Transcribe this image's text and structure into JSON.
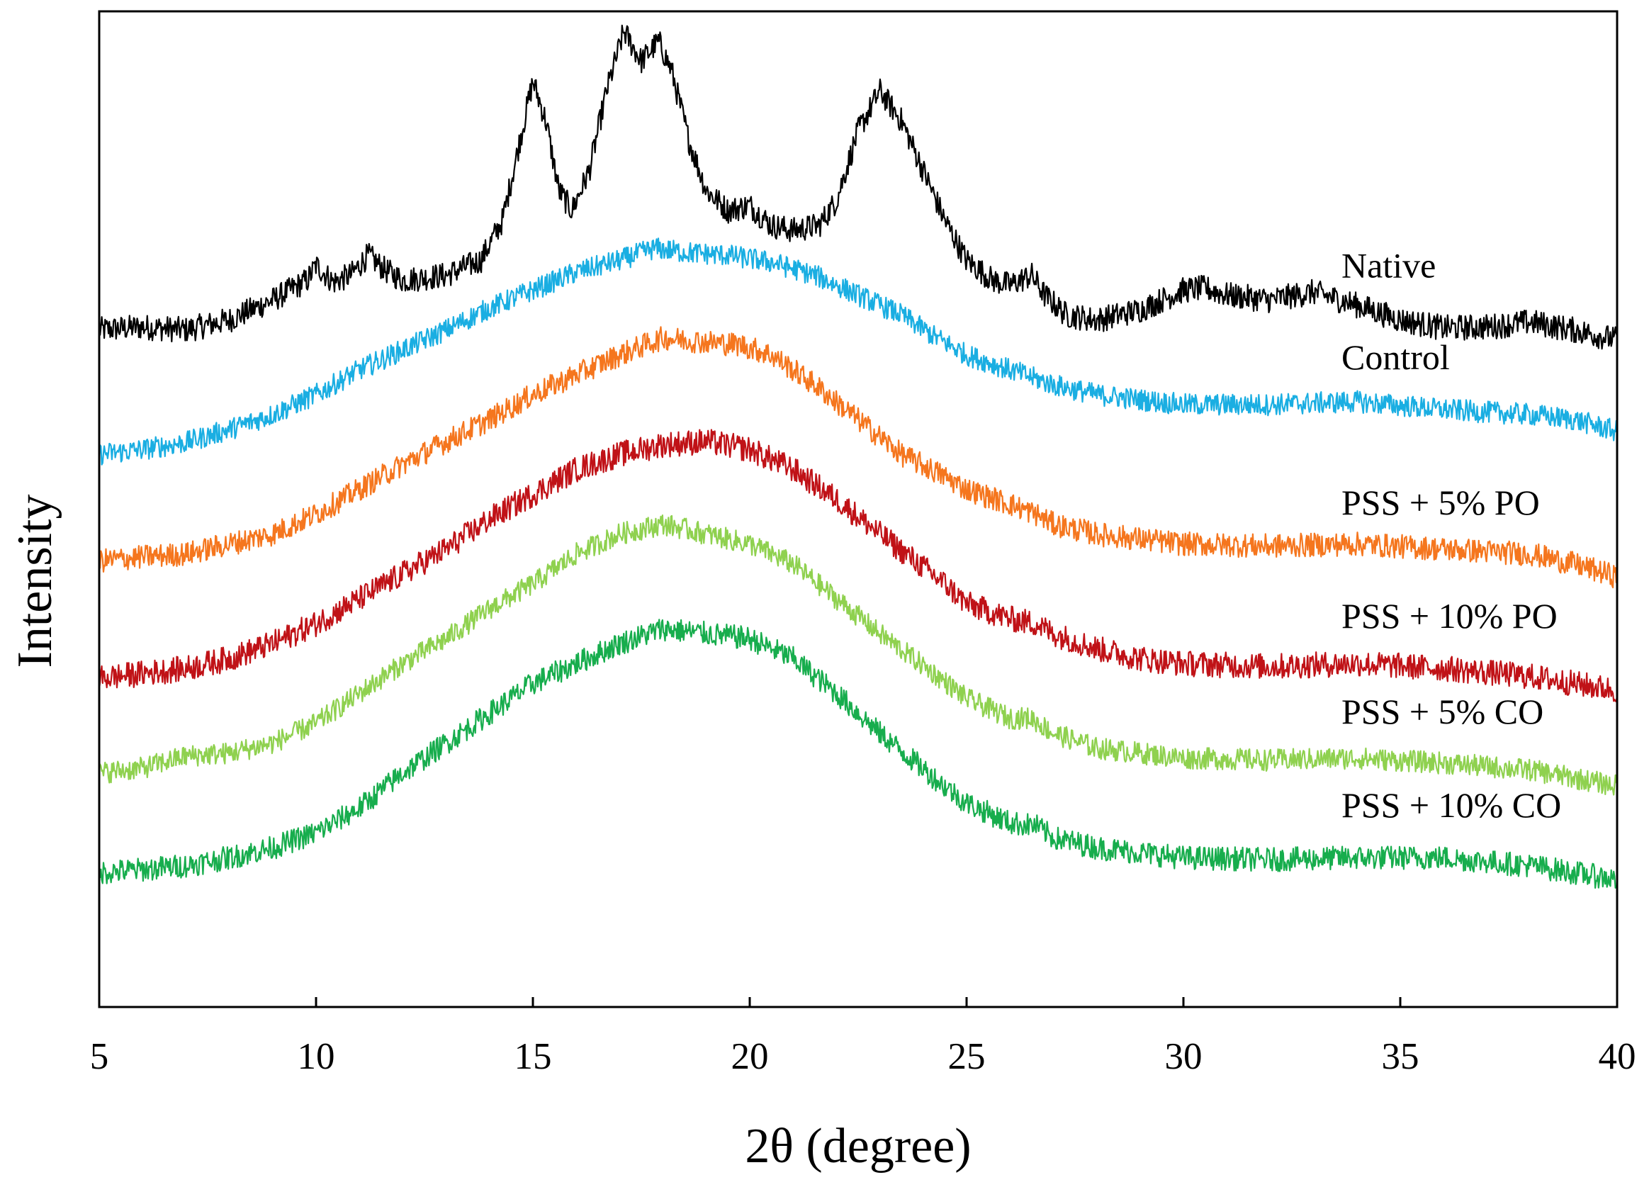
{
  "chart_data": {
    "type": "line",
    "title": "",
    "xlabel": "2θ (degree)",
    "ylabel": "Intensity",
    "xlim": [
      5,
      40
    ],
    "ylim": [
      0,
      100
    ],
    "xticks": [
      5,
      10,
      15,
      20,
      25,
      30,
      35,
      40
    ],
    "yticks_shown": false,
    "grid": false,
    "legend": "inline labels at right end of each curve",
    "series": [
      {
        "name": "Native",
        "color": "#000000",
        "noise": 1.3,
        "points": [
          [
            5,
            68
          ],
          [
            6,
            68.3
          ],
          [
            7,
            68
          ],
          [
            8,
            69
          ],
          [
            9,
            71
          ],
          [
            9.8,
            73
          ],
          [
            10,
            74.5
          ],
          [
            10.4,
            72.8
          ],
          [
            10.8,
            73.5
          ],
          [
            11.2,
            75.5
          ],
          [
            11.6,
            74
          ],
          [
            12,
            73
          ],
          [
            13,
            73.5
          ],
          [
            13.8,
            75
          ],
          [
            14.3,
            79
          ],
          [
            14.7,
            87
          ],
          [
            15,
            93
          ],
          [
            15.3,
            89
          ],
          [
            15.6,
            82
          ],
          [
            15.9,
            80
          ],
          [
            16.3,
            84
          ],
          [
            16.7,
            92
          ],
          [
            17.1,
            98
          ],
          [
            17.5,
            95
          ],
          [
            17.9,
            97
          ],
          [
            18.2,
            94
          ],
          [
            18.6,
            87
          ],
          [
            19,
            82
          ],
          [
            19.5,
            80
          ],
          [
            20,
            80.5
          ],
          [
            20.5,
            78.5
          ],
          [
            21,
            78
          ],
          [
            21.6,
            78.5
          ],
          [
            22,
            81
          ],
          [
            22.5,
            88
          ],
          [
            23,
            92
          ],
          [
            23.5,
            89
          ],
          [
            24,
            84
          ],
          [
            24.5,
            79
          ],
          [
            25,
            75
          ],
          [
            25.6,
            73
          ],
          [
            26,
            72.5
          ],
          [
            26.5,
            73.5
          ],
          [
            26.8,
            71.5
          ],
          [
            27.3,
            69.5
          ],
          [
            28,
            69
          ],
          [
            29,
            70
          ],
          [
            30,
            72
          ],
          [
            30.5,
            72.2
          ],
          [
            31,
            71.5
          ],
          [
            32,
            71
          ],
          [
            33,
            71.8
          ],
          [
            34,
            70.5
          ],
          [
            35,
            69
          ],
          [
            36,
            68.2
          ],
          [
            37,
            68.3
          ],
          [
            38,
            68.8
          ],
          [
            39,
            68
          ],
          [
            40,
            67
          ]
        ]
      },
      {
        "name": "Control",
        "color": "#1aaee2",
        "noise": 1.1,
        "points": [
          [
            5,
            55.5
          ],
          [
            6,
            56
          ],
          [
            7,
            56.7
          ],
          [
            8,
            58
          ],
          [
            9,
            59.5
          ],
          [
            10,
            61.5
          ],
          [
            11,
            64
          ],
          [
            12,
            66
          ],
          [
            13,
            68
          ],
          [
            14,
            70.2
          ],
          [
            15,
            72
          ],
          [
            16,
            73.8
          ],
          [
            17,
            75
          ],
          [
            17.8,
            76.2
          ],
          [
            18.5,
            75.8
          ],
          [
            19.5,
            75.5
          ],
          [
            20.5,
            74.8
          ],
          [
            21.5,
            73.5
          ],
          [
            22.5,
            71.5
          ],
          [
            23.5,
            69.5
          ],
          [
            24.2,
            67.5
          ],
          [
            25,
            65.5
          ],
          [
            26,
            64
          ],
          [
            27,
            62.5
          ],
          [
            28,
            61.5
          ],
          [
            30,
            60.5
          ],
          [
            32,
            60.5
          ],
          [
            34,
            60.8
          ],
          [
            36,
            60
          ],
          [
            38,
            59.5
          ],
          [
            39,
            59
          ],
          [
            40,
            57.8
          ]
        ]
      },
      {
        "name": "PSS + 5% PO",
        "color": "#f5761e",
        "noise": 1.2,
        "points": [
          [
            5,
            44.8
          ],
          [
            6,
            45.2
          ],
          [
            7,
            45.5
          ],
          [
            8,
            46.5
          ],
          [
            9,
            47.5
          ],
          [
            10,
            49.5
          ],
          [
            11,
            52
          ],
          [
            12,
            54.5
          ],
          [
            13,
            56.8
          ],
          [
            14,
            59
          ],
          [
            15,
            61.5
          ],
          [
            16,
            63.5
          ],
          [
            17,
            65.5
          ],
          [
            18,
            67.2
          ],
          [
            19,
            66.8
          ],
          [
            19.8,
            66.5
          ],
          [
            20.5,
            65.5
          ],
          [
            21.5,
            62.5
          ],
          [
            22.5,
            59
          ],
          [
            23.5,
            55.5
          ],
          [
            24.4,
            53.5
          ],
          [
            25,
            52
          ],
          [
            26,
            50.5
          ],
          [
            26.6,
            49.5
          ],
          [
            27,
            48.5
          ],
          [
            28,
            47.5
          ],
          [
            29,
            47
          ],
          [
            30,
            46.5
          ],
          [
            32,
            46.3
          ],
          [
            34,
            46.5
          ],
          [
            36,
            46
          ],
          [
            38,
            45.5
          ],
          [
            39,
            44.5
          ],
          [
            40,
            43.2
          ]
        ]
      },
      {
        "name": "PSS + 10% PO",
        "color": "#c01217",
        "noise": 1.3,
        "points": [
          [
            5,
            33
          ],
          [
            6,
            33.5
          ],
          [
            7,
            34
          ],
          [
            8,
            35
          ],
          [
            9,
            36.5
          ],
          [
            10,
            38.5
          ],
          [
            11,
            41
          ],
          [
            12,
            43.5
          ],
          [
            13,
            46
          ],
          [
            14,
            49
          ],
          [
            15,
            51.5
          ],
          [
            16,
            54
          ],
          [
            17,
            55.5
          ],
          [
            18,
            56.5
          ],
          [
            19,
            56.8
          ],
          [
            20,
            56
          ],
          [
            21,
            54
          ],
          [
            22,
            51
          ],
          [
            23,
            47.5
          ],
          [
            24.5,
            42.5
          ],
          [
            25,
            40.5
          ],
          [
            26,
            39
          ],
          [
            26.6,
            38.5
          ],
          [
            27,
            37.5
          ],
          [
            28,
            36
          ],
          [
            29,
            35
          ],
          [
            30,
            34.5
          ],
          [
            32,
            34.2
          ],
          [
            34,
            34.5
          ],
          [
            36,
            34
          ],
          [
            38,
            33.2
          ],
          [
            40,
            31.8
          ]
        ]
      },
      {
        "name": "PSS + 5% CO",
        "color": "#8fd14f",
        "noise": 1.1,
        "points": [
          [
            5,
            23.5
          ],
          [
            6,
            24
          ],
          [
            7,
            25.2
          ],
          [
            8,
            25.5
          ],
          [
            9,
            26.5
          ],
          [
            10,
            28.5
          ],
          [
            11,
            31.5
          ],
          [
            12,
            34.5
          ],
          [
            13,
            37
          ],
          [
            14,
            40
          ],
          [
            15,
            42.5
          ],
          [
            16,
            45.5
          ],
          [
            17,
            47.5
          ],
          [
            18,
            48.5
          ],
          [
            19,
            47.5
          ],
          [
            20,
            46.5
          ],
          [
            21,
            44.5
          ],
          [
            22,
            41
          ],
          [
            23,
            37.5
          ],
          [
            24.4,
            33
          ],
          [
            25,
            31
          ],
          [
            26,
            29
          ],
          [
            26.5,
            29
          ],
          [
            27,
            27.5
          ],
          [
            28,
            26
          ],
          [
            29,
            25.5
          ],
          [
            30,
            25
          ],
          [
            32,
            24.8
          ],
          [
            34,
            25
          ],
          [
            36,
            24.5
          ],
          [
            38,
            23.8
          ],
          [
            40,
            22.2
          ]
        ]
      },
      {
        "name": "PSS + 10% CO",
        "color": "#17ad4d",
        "noise": 1.2,
        "points": [
          [
            5,
            13.5
          ],
          [
            6,
            13.8
          ],
          [
            7,
            14.2
          ],
          [
            8,
            15
          ],
          [
            9,
            16
          ],
          [
            10,
            17.5
          ],
          [
            11,
            20
          ],
          [
            12,
            23.5
          ],
          [
            13,
            26.5
          ],
          [
            14,
            29.5
          ],
          [
            15,
            32.5
          ],
          [
            16,
            34.5
          ],
          [
            17,
            36.5
          ],
          [
            18,
            38
          ],
          [
            19,
            37.5
          ],
          [
            20,
            37
          ],
          [
            21,
            35
          ],
          [
            22,
            31.5
          ],
          [
            23,
            27.5
          ],
          [
            24.4,
            22.5
          ],
          [
            25,
            20.5
          ],
          [
            26,
            18.5
          ],
          [
            26.6,
            18.2
          ],
          [
            27,
            17
          ],
          [
            28,
            16
          ],
          [
            29,
            15.5
          ],
          [
            30,
            15
          ],
          [
            32,
            14.8
          ],
          [
            34,
            15
          ],
          [
            36,
            15
          ],
          [
            38,
            14.2
          ],
          [
            40,
            12.8
          ]
        ]
      }
    ]
  }
}
